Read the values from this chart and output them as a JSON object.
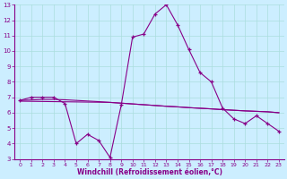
{
  "title": "",
  "xlabel": "Windchill (Refroidissement éolien,°C)",
  "x": [
    0,
    1,
    2,
    3,
    4,
    5,
    6,
    7,
    8,
    9,
    10,
    11,
    12,
    13,
    14,
    15,
    16,
    17,
    18,
    19,
    20,
    21,
    22,
    23
  ],
  "y_main": [
    6.8,
    7.0,
    7.0,
    7.0,
    6.6,
    4.0,
    4.6,
    4.2,
    3.1,
    6.5,
    10.9,
    11.1,
    12.4,
    13.0,
    11.7,
    10.1,
    8.6,
    8.0,
    6.3,
    5.6,
    5.3,
    5.8,
    5.3,
    4.8
  ],
  "y_line1": [
    6.8,
    6.83,
    6.86,
    6.86,
    6.84,
    6.8,
    6.76,
    6.72,
    6.67,
    6.62,
    6.57,
    6.52,
    6.47,
    6.42,
    6.38,
    6.33,
    6.29,
    6.25,
    6.2,
    6.16,
    6.12,
    6.09,
    6.06,
    6.0
  ],
  "y_line2": [
    6.75,
    6.74,
    6.73,
    6.72,
    6.71,
    6.7,
    6.69,
    6.68,
    6.67,
    6.62,
    6.57,
    6.52,
    6.47,
    6.42,
    6.38,
    6.33,
    6.29,
    6.25,
    6.2,
    6.16,
    6.12,
    6.09,
    6.06,
    6.0
  ],
  "ylim": [
    3,
    13
  ],
  "yticks": [
    3,
    4,
    5,
    6,
    7,
    8,
    9,
    10,
    11,
    12,
    13
  ],
  "xticks": [
    0,
    1,
    2,
    3,
    4,
    5,
    6,
    7,
    8,
    9,
    10,
    11,
    12,
    13,
    14,
    15,
    16,
    17,
    18,
    19,
    20,
    21,
    22,
    23
  ],
  "line_color": "#880088",
  "bg_color": "#cceeff",
  "grid_color": "#aadddd",
  "text_color": "#880088",
  "axis_color": "#880088"
}
